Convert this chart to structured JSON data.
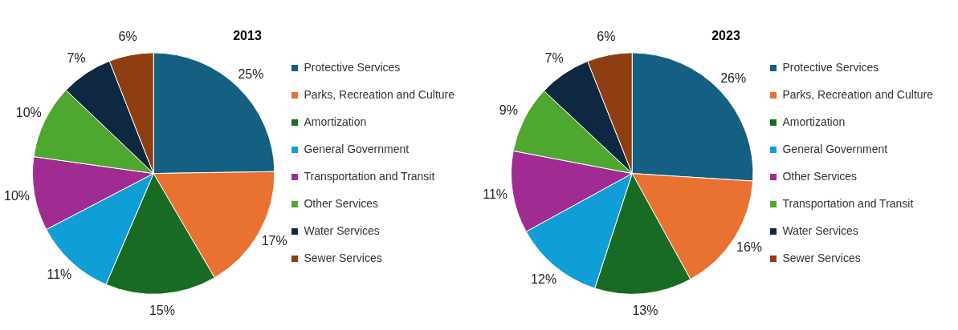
{
  "chart_data": [
    {
      "type": "pie",
      "title": "2013",
      "legend": "right",
      "categories": [
        "Protective Services",
        "Parks, Recreation and Culture",
        "Amortization",
        "General Government",
        "Transportation and Transit",
        "Other Services",
        "Water Services",
        "Sewer Services"
      ],
      "values": [
        25,
        17,
        15,
        11,
        10,
        10,
        7,
        6
      ],
      "value_labels": [
        "25%",
        "17%",
        "15%",
        "11%",
        "10%",
        "10%",
        "7%",
        "6%"
      ],
      "colors": [
        "#156082",
        "#e97132",
        "#196b24",
        "#0f9ed5",
        "#a02b93",
        "#4ea72e",
        "#0e2841",
        "#8f3e12"
      ]
    },
    {
      "type": "pie",
      "title": "2023",
      "legend": "right",
      "categories": [
        "Protective Services",
        "Parks, Recreation and Culture",
        "Amortization",
        "General Government",
        "Other Services",
        "Transportation and Transit",
        "Water Services",
        "Sewer Services"
      ],
      "values": [
        26,
        16,
        13,
        12,
        11,
        9,
        7,
        6
      ],
      "value_labels": [
        "26%",
        "16%",
        "13%",
        "12%",
        "11%",
        "9%",
        "7%",
        "6%"
      ],
      "colors": [
        "#156082",
        "#e97132",
        "#196b24",
        "#0f9ed5",
        "#a02b93",
        "#4ea72e",
        "#0e2841",
        "#8f3e12"
      ]
    }
  ]
}
